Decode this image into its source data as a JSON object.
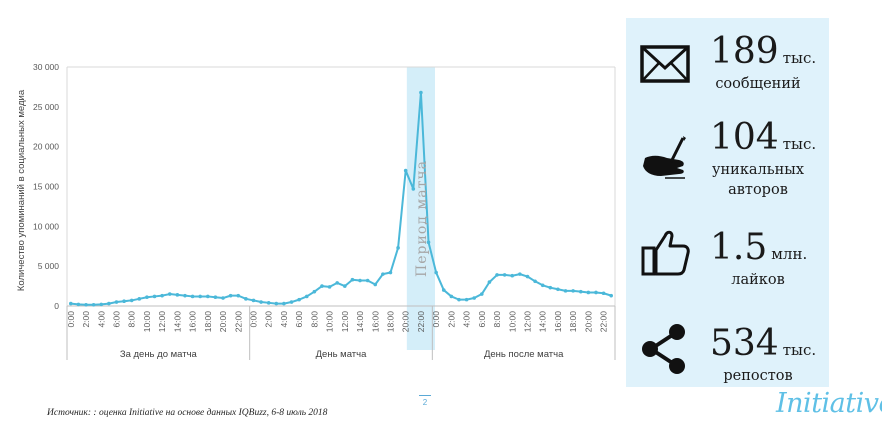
{
  "chart_data": {
    "type": "line",
    "ylabel": "Количество упоминаний в социальных медиа",
    "ylim": [
      0,
      30000
    ],
    "y_ticks": [
      "0",
      "5 000",
      "10 000",
      "15 000",
      "20 000",
      "25 000",
      "30 000"
    ],
    "y_tick_values": [
      0,
      5000,
      10000,
      15000,
      20000,
      25000,
      30000
    ],
    "x_tick_labels": [
      "0:00",
      "2:00",
      "4:00",
      "6:00",
      "8:00",
      "10:00",
      "12:00",
      "14:00",
      "16:00",
      "18:00",
      "20:00",
      "22:00",
      "0:00",
      "2:00",
      "4:00",
      "6:00",
      "8:00",
      "10:00",
      "12:00",
      "14:00",
      "16:00",
      "18:00",
      "20:00",
      "22:00",
      "0:00",
      "2:00",
      "4:00",
      "6:00",
      "8:00",
      "10:00",
      "12:00",
      "14:00",
      "16:00",
      "18:00",
      "20:00",
      "22:00"
    ],
    "groups": [
      "За день до матча",
      "День матча",
      "День после матча"
    ],
    "highlight_label": "Период матча",
    "highlight_hours": [
      45,
      47
    ],
    "grid": false,
    "legend": "none",
    "series": [
      {
        "color": "#4bb8d9",
        "values": [
          300,
          200,
          150,
          150,
          200,
          300,
          500,
          600,
          700,
          900,
          1100,
          1200,
          1300,
          1500,
          1400,
          1300,
          1200,
          1200,
          1200,
          1100,
          1000,
          1300,
          1300,
          900,
          700,
          500,
          400,
          300,
          300,
          500,
          800,
          1200,
          1800,
          2500,
          2400,
          2900,
          2500,
          3300,
          3200,
          3200,
          2700,
          4000,
          4200,
          7300,
          17000,
          14700,
          26800,
          8000,
          4200,
          2000,
          1200,
          800,
          800,
          1000,
          1500,
          3000,
          3900,
          3900,
          3800,
          4000,
          3700,
          3100,
          2600,
          2300,
          2100,
          1900,
          1900,
          1800,
          1700,
          1700,
          1600,
          1300
        ]
      }
    ]
  },
  "stats": [
    {
      "icon": "envelope-icon",
      "number": "189",
      "unit": "тыс.",
      "desc": [
        "сообщений"
      ]
    },
    {
      "icon": "writing-hand-icon",
      "number": "104",
      "unit": "тыс.",
      "desc": [
        "уникальных",
        "авторов"
      ]
    },
    {
      "icon": "thumbs-up-icon",
      "number": "1.5",
      "unit": "млн.",
      "desc": [
        "лайков"
      ]
    },
    {
      "icon": "share-icon",
      "number": "534",
      "unit": "тыс.",
      "desc": [
        "репостов"
      ]
    }
  ],
  "source_note": "Источник: : оценка Initiative на основе данных IQBuzz, 6-8 июль 2018",
  "page_number": "2",
  "brand": "Initiative",
  "colors": {
    "accent": "#4bb8d9",
    "panel": "#dff2fb",
    "highlight": "#d4eef9"
  }
}
